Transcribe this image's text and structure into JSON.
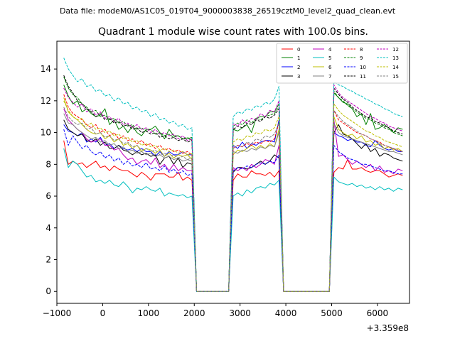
{
  "chart_data": {
    "type": "line",
    "suptitle": "Data file: modeM0/AS1C05_019T04_9000003838_26519cztM0_level2_quad_clean.evt",
    "title": "Quadrant 1 module wise count rates with 100.0s bins.",
    "xlabel": "",
    "ylabel": "",
    "x_offset_label": "+3.359e8",
    "xlim": [
      -1000,
      6700
    ],
    "ylim": [
      -0.75,
      15.75
    ],
    "x_ticks": [
      -1000,
      0,
      1000,
      2000,
      3000,
      4000,
      5000,
      6000
    ],
    "x_tick_labels": [
      "−1000",
      "0",
      "1000",
      "2000",
      "3000",
      "4000",
      "5000",
      "6000"
    ],
    "y_ticks": [
      0,
      2,
      4,
      6,
      8,
      10,
      12,
      14
    ],
    "y_tick_labels": [
      "0",
      "2",
      "4",
      "6",
      "8",
      "10",
      "12",
      "14"
    ],
    "legend_position": "upper-right",
    "segments": [
      {
        "start": -850,
        "step": 100,
        "count": 29
      },
      {
        "start": 2050,
        "step": 100,
        "count": 8
      },
      {
        "start": 2850,
        "step": 100,
        "count": 11
      },
      {
        "start": 3950,
        "step": 100,
        "count": 11
      },
      {
        "start": 5050,
        "step": 100,
        "count": 16
      }
    ],
    "series": [
      {
        "name": "0",
        "color": "#ff0000",
        "dash": "solid",
        "seg1": [
          9.5,
          8.0,
          8.2,
          8.0,
          8.1,
          7.8,
          8.0,
          8.2,
          7.8,
          7.9,
          7.6,
          7.9,
          7.7,
          7.6,
          7.6,
          7.4,
          7.2,
          7.5,
          7.3,
          7.0,
          7.4,
          7.4,
          7.4,
          7.2,
          7.2,
          7.5,
          7.0,
          7.2,
          7.0
        ],
        "seg3": [
          7.0,
          7.4,
          7.2,
          7.2,
          7.6,
          7.4,
          7.4,
          7.3,
          7.5,
          7.2,
          7.6
        ],
        "seg5": [
          7.5,
          7.8,
          7.7,
          8.3,
          7.7,
          7.7,
          7.8,
          7.6,
          7.5,
          7.6,
          7.6,
          7.4,
          7.2,
          7.3,
          7.4,
          7.3
        ]
      },
      {
        "name": "1",
        "color": "#008000",
        "dash": "solid",
        "seg1": [
          13.0,
          12.3,
          11.8,
          12.0,
          11.3,
          11.5,
          11.2,
          11.0,
          11.1,
          11.5,
          10.5,
          10.8,
          10.2,
          10.4,
          10.0,
          10.4,
          10.0,
          9.8,
          10.2,
          10.2,
          10.4,
          10.0,
          9.6,
          10.2,
          9.8,
          9.8,
          9.6,
          9.6,
          9.7
        ],
        "seg3": [
          10.2,
          10.1,
          10.3,
          10.5,
          10.0,
          10.9,
          11.0,
          11.0,
          11.3,
          11.3,
          11.8
        ],
        "seg5": [
          12.5,
          12.2,
          11.9,
          11.8,
          11.5,
          11.0,
          11.2,
          10.5,
          11.2,
          10.2,
          10.3,
          10.5,
          10.3,
          10.0,
          10.3,
          10.2
        ]
      },
      {
        "name": "2",
        "color": "#0000ff",
        "dash": "solid",
        "seg1": [
          10.5,
          10.1,
          10.0,
          9.8,
          10.0,
          9.4,
          9.6,
          9.4,
          9.7,
          9.2,
          9.3,
          9.0,
          9.2,
          9.0,
          8.9,
          9.0,
          8.8,
          9.0,
          8.8,
          8.8,
          8.5,
          8.8,
          8.5,
          8.8,
          8.6,
          8.6,
          8.8,
          8.6,
          8.6
        ],
        "seg3": [
          9.2,
          9.0,
          9.4,
          9.0,
          9.3,
          9.2,
          9.4,
          9.5,
          9.5,
          9.4,
          10.8
        ],
        "seg5": [
          10.0,
          9.8,
          9.7,
          9.5,
          9.6,
          9.4,
          9.4,
          9.2,
          9.1,
          9.5,
          9.2,
          9.0,
          8.9,
          9.0,
          8.8,
          8.8
        ]
      },
      {
        "name": "3",
        "color": "#000000",
        "dash": "solid",
        "seg1": [
          10.8,
          10.2,
          10.0,
          9.8,
          9.9,
          9.5,
          9.4,
          9.6,
          9.2,
          9.4,
          9.0,
          9.0,
          9.2,
          8.9,
          8.8,
          8.6,
          8.8,
          8.6,
          8.7,
          8.5,
          8.6,
          8.0,
          8.4,
          8.5,
          8.0,
          8.4,
          7.8,
          8.1,
          8.0
        ],
        "seg3": [
          7.5,
          7.8,
          7.8,
          7.7,
          7.8,
          8.0,
          8.2,
          8.0,
          8.2,
          8.6,
          8.4
        ],
        "seg5": [
          10.0,
          10.5,
          9.9,
          9.8,
          9.6,
          9.3,
          9.0,
          9.3,
          8.8,
          9.0,
          8.5,
          8.7,
          8.6,
          8.4,
          8.3,
          8.2
        ]
      },
      {
        "name": "4",
        "color": "#bf00bf",
        "dash": "solid",
        "seg1": [
          11.5,
          10.8,
          10.5,
          10.2,
          10.0,
          9.6,
          9.4,
          9.5,
          9.6,
          9.2,
          9.2,
          8.9,
          9.0,
          8.6,
          8.3,
          8.4,
          8.0,
          8.2,
          8.3,
          8.0,
          8.4,
          7.8,
          8.0,
          7.6,
          8.0,
          7.6,
          7.8,
          7.6,
          7.6
        ],
        "seg3": [
          7.8,
          7.6,
          7.8,
          7.6,
          8.0,
          7.8,
          8.0,
          8.3,
          8.2,
          8.0,
          9.2
        ],
        "seg5": [
          10.8,
          8.5,
          8.6,
          8.3,
          8.0,
          8.2,
          8.0,
          7.8,
          8.0,
          7.6,
          7.9,
          7.5,
          7.6,
          7.4,
          7.7,
          7.6
        ]
      },
      {
        "name": "5",
        "color": "#00bfbf",
        "dash": "solid",
        "seg1": [
          9.0,
          7.8,
          8.2,
          8.0,
          7.6,
          7.2,
          7.3,
          6.9,
          7.0,
          6.8,
          7.0,
          6.7,
          6.6,
          6.9,
          6.6,
          6.2,
          6.5,
          6.4,
          6.6,
          6.4,
          6.3,
          6.5,
          6.0,
          6.2,
          6.1,
          6.0,
          6.1,
          5.9,
          6.0
        ],
        "seg3": [
          6.0,
          6.2,
          6.0,
          6.4,
          6.2,
          6.5,
          6.6,
          6.5,
          6.8,
          6.7,
          7.0
        ],
        "seg5": [
          7.2,
          6.9,
          6.8,
          6.7,
          6.8,
          6.6,
          6.7,
          6.5,
          6.6,
          6.4,
          6.6,
          6.4,
          6.5,
          6.3,
          6.5,
          6.4
        ]
      },
      {
        "name": "6",
        "color": "#bfbf00",
        "dash": "solid",
        "seg1": [
          12.2,
          11.3,
          11.0,
          10.8,
          10.5,
          10.2,
          10.0,
          9.9,
          10.0,
          9.6,
          9.8,
          9.4,
          9.6,
          9.2,
          9.3,
          9.0,
          9.2,
          8.8,
          9.0,
          8.9,
          8.7,
          8.9,
          8.5,
          8.7,
          8.4,
          8.6,
          8.5,
          8.6,
          8.3
        ],
        "seg3": [
          8.6,
          8.9,
          8.8,
          9.0,
          9.2,
          9.0,
          9.2,
          9.0,
          9.3,
          9.1,
          10.2
        ],
        "seg5": [
          11.0,
          10.2,
          10.0,
          9.8,
          9.9,
          9.6,
          9.8,
          9.4,
          9.5,
          9.2,
          9.3,
          9.0,
          9.1,
          8.9,
          9.0,
          8.8
        ]
      },
      {
        "name": "7",
        "color": "#808080",
        "dash": "solid",
        "seg1": [
          11.2,
          10.6,
          10.5,
          10.2,
          10.0,
          9.8,
          9.6,
          9.7,
          9.4,
          9.5,
          9.2,
          9.3,
          9.0,
          9.1,
          8.8,
          8.9,
          8.7,
          8.8,
          8.6,
          8.7,
          8.5,
          8.6,
          8.4,
          8.5,
          8.3,
          8.4,
          8.2,
          8.3,
          8.2
        ],
        "seg3": [
          8.8,
          8.7,
          8.9,
          8.8,
          9.0,
          8.9,
          9.1,
          9.0,
          9.2,
          9.1,
          10.0
        ],
        "seg5": [
          10.6,
          10.0,
          9.8,
          9.7,
          9.6,
          9.5,
          9.4,
          9.3,
          9.2,
          9.1,
          9.0,
          8.9,
          8.8,
          8.8,
          8.7,
          8.6
        ]
      },
      {
        "name": "8",
        "color": "#ff0000",
        "dash": "dashed",
        "seg1": [
          12.4,
          11.6,
          11.2,
          11.0,
          10.8,
          10.5,
          10.3,
          10.5,
          10.0,
          10.2,
          9.8,
          10.0,
          9.6,
          9.8,
          9.5,
          9.6,
          9.3,
          9.5,
          9.2,
          9.3,
          9.0,
          9.2,
          8.9,
          9.0,
          8.8,
          8.9,
          8.7,
          8.8,
          8.6
        ],
        "seg3": [
          9.0,
          9.2,
          9.1,
          9.3,
          9.2,
          9.4,
          9.3,
          9.5,
          9.4,
          9.6,
          10.6
        ],
        "seg5": [
          11.4,
          10.8,
          10.6,
          10.4,
          10.2,
          10.0,
          9.9,
          9.8,
          9.6,
          9.5,
          9.4,
          9.2,
          9.1,
          9.0,
          8.9,
          8.8
        ]
      },
      {
        "name": "9",
        "color": "#008000",
        "dash": "dashed",
        "seg1": [
          13.5,
          12.8,
          12.4,
          12.2,
          11.8,
          11.6,
          11.3,
          11.4,
          11.0,
          11.1,
          10.8,
          10.9,
          10.6,
          10.7,
          10.4,
          10.5,
          10.2,
          10.3,
          10.1,
          10.2,
          9.9,
          10.0,
          9.8,
          9.9,
          9.7,
          9.8,
          9.6,
          9.7,
          9.5
        ],
        "seg3": [
          10.4,
          10.6,
          10.5,
          10.8,
          10.6,
          10.9,
          10.8,
          11.0,
          11.1,
          11.2,
          11.6
        ],
        "seg5": [
          12.6,
          12.2,
          12.0,
          11.7,
          11.5,
          11.3,
          11.1,
          10.9,
          10.8,
          10.6,
          10.5,
          10.3,
          10.2,
          10.0,
          9.9,
          9.8
        ]
      },
      {
        "name": "10",
        "color": "#0000ff",
        "dash": "dashed",
        "seg1": [
          10.2,
          9.2,
          9.8,
          9.4,
          9.0,
          9.2,
          8.8,
          8.6,
          8.8,
          8.4,
          8.6,
          8.2,
          8.4,
          8.0,
          8.2,
          7.9,
          8.0,
          7.8,
          8.1,
          7.7,
          7.8,
          7.6,
          7.9,
          7.5,
          7.7,
          7.4,
          7.6,
          7.3,
          7.4
        ],
        "seg3": [
          7.6,
          7.8,
          7.7,
          7.9,
          7.8,
          8.0,
          8.1,
          8.0,
          8.2,
          8.1,
          8.6
        ],
        "seg5": [
          9.2,
          8.8,
          8.6,
          8.4,
          8.3,
          8.2,
          8.0,
          8.0,
          7.9,
          7.8,
          7.7,
          7.6,
          7.6,
          7.5,
          7.4,
          7.4
        ]
      },
      {
        "name": "11",
        "color": "#000000",
        "dash": "dashed",
        "seg1": [
          13.6,
          12.9,
          12.5,
          12.0,
          11.8,
          11.5,
          11.3,
          11.0,
          11.2,
          10.8,
          10.9,
          10.6,
          10.7,
          10.4,
          10.5,
          10.2,
          10.3,
          10.0,
          10.1,
          9.9,
          10.0,
          9.7,
          9.8,
          9.6,
          9.7,
          9.5,
          9.6,
          9.4,
          9.5
        ],
        "seg3": [
          10.2,
          10.4,
          10.3,
          10.6,
          10.5,
          10.8,
          10.7,
          11.0,
          10.9,
          11.1,
          11.5
        ],
        "seg5": [
          12.8,
          12.4,
          12.1,
          11.9,
          11.6,
          11.4,
          11.2,
          11.0,
          10.9,
          10.7,
          10.6,
          10.4,
          10.3,
          10.1,
          10.0,
          9.9
        ]
      },
      {
        "name": "12",
        "color": "#bf00bf",
        "dash": "dashed",
        "seg1": [
          12.8,
          12.2,
          11.9,
          11.6,
          11.8,
          11.3,
          11.5,
          11.1,
          11.3,
          10.9,
          11.0,
          10.7,
          10.9,
          10.5,
          10.6,
          10.3,
          10.5,
          10.2,
          10.3,
          10.0,
          10.2,
          9.9,
          10.0,
          9.8,
          9.9,
          9.6,
          9.8,
          9.5,
          9.6
        ],
        "seg3": [
          10.6,
          10.4,
          10.8,
          10.6,
          10.9,
          10.8,
          11.2,
          11.0,
          11.4,
          11.3,
          12.0
        ],
        "seg5": [
          13.0,
          12.5,
          12.2,
          12.0,
          11.8,
          11.6,
          11.4,
          11.2,
          11.0,
          10.9,
          10.7,
          10.6,
          10.4,
          10.3,
          10.2,
          10.1
        ]
      },
      {
        "name": "13",
        "color": "#00bfbf",
        "dash": "dashed",
        "seg1": [
          14.7,
          14.0,
          13.6,
          13.2,
          13.4,
          12.9,
          13.0,
          12.6,
          12.7,
          12.3,
          12.4,
          12.0,
          12.2,
          11.8,
          11.9,
          11.5,
          11.6,
          11.3,
          11.4,
          11.0,
          11.2,
          10.8,
          10.9,
          10.6,
          10.7,
          10.4,
          10.5,
          10.2,
          10.3
        ],
        "seg3": [
          11.0,
          11.3,
          11.2,
          11.5,
          11.4,
          11.7,
          11.6,
          11.9,
          11.8,
          12.1,
          12.9
        ],
        "seg5": [
          13.2,
          13.0,
          12.9,
          12.7,
          12.6,
          12.4,
          12.3,
          12.1,
          12.0,
          11.8,
          11.7,
          11.5,
          11.4,
          11.2,
          11.1,
          11.0
        ]
      },
      {
        "name": "14",
        "color": "#bfbf00",
        "dash": "dashed",
        "seg1": [
          12.0,
          11.4,
          11.0,
          10.8,
          10.9,
          10.4,
          10.6,
          10.2,
          10.3,
          10.0,
          10.1,
          9.8,
          9.9,
          9.6,
          9.7,
          9.4,
          9.5,
          9.2,
          9.3,
          9.1,
          9.2,
          8.9,
          9.0,
          8.8,
          8.9,
          8.7,
          8.8,
          8.6,
          8.7
        ],
        "seg3": [
          9.4,
          9.6,
          9.5,
          9.8,
          9.7,
          10.0,
          9.9,
          10.2,
          10.1,
          10.3,
          11.0
        ],
        "seg5": [
          11.8,
          11.4,
          11.1,
          10.9,
          10.7,
          10.5,
          10.3,
          10.1,
          10.0,
          9.8,
          9.7,
          9.5,
          9.4,
          9.3,
          9.2,
          9.1
        ]
      },
      {
        "name": "15",
        "color": "#808080",
        "dash": "dashed",
        "seg1": [
          11.6,
          11.0,
          10.7,
          10.5,
          10.6,
          10.2,
          10.3,
          9.9,
          10.0,
          9.7,
          9.8,
          9.5,
          9.6,
          9.3,
          9.4,
          9.1,
          9.2,
          8.9,
          9.0,
          8.8,
          8.9,
          8.6,
          8.7,
          8.5,
          8.6,
          8.4,
          8.5,
          8.3,
          8.4
        ],
        "seg3": [
          9.0,
          9.2,
          9.1,
          9.4,
          9.3,
          9.6,
          9.5,
          9.8,
          9.7,
          9.9,
          10.6
        ],
        "seg5": [
          11.4,
          11.0,
          10.7,
          10.5,
          10.3,
          10.1,
          9.9,
          9.8,
          9.6,
          9.5,
          9.3,
          9.2,
          9.1,
          9.0,
          8.9,
          8.8
        ]
      }
    ]
  }
}
